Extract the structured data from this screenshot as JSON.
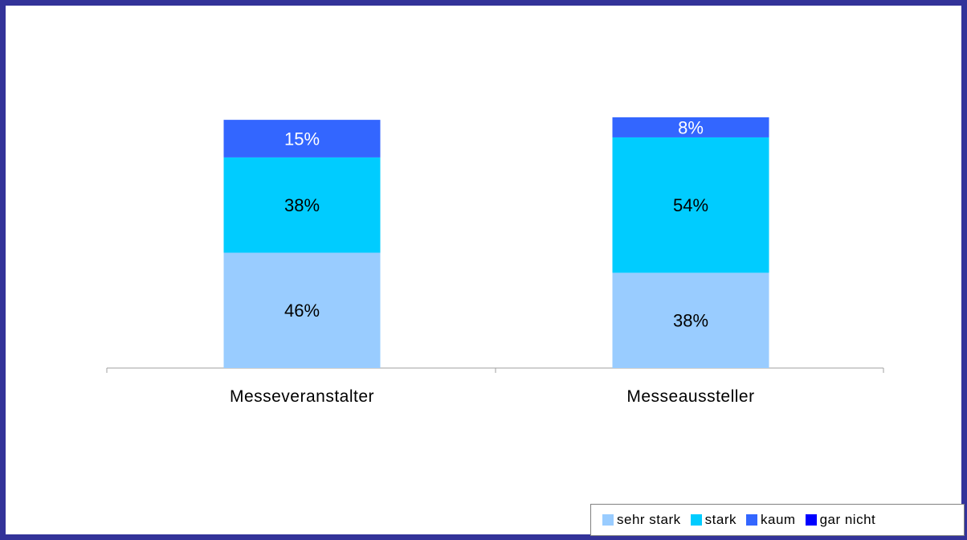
{
  "chart_data": {
    "type": "bar",
    "stacked": true,
    "categories": [
      "Messeveranstalter",
      "Messeaussteller"
    ],
    "series": [
      {
        "name": "sehr stark",
        "values": [
          46,
          38
        ],
        "labels": [
          "46%",
          "38%"
        ],
        "color": "#99ccff",
        "label_color": "#000000"
      },
      {
        "name": "stark",
        "values": [
          38,
          54
        ],
        "labels": [
          "38%",
          "54%"
        ],
        "color": "#00ccff",
        "label_color": "#000000"
      },
      {
        "name": "kaum",
        "values": [
          15,
          8
        ],
        "labels": [
          "15%",
          "8%"
        ],
        "color": "#3366ff",
        "label_color": "#ffffff"
      },
      {
        "name": "gar nicht",
        "values": [
          0,
          0
        ],
        "labels": [
          "",
          ""
        ],
        "color": "#0000ff",
        "label_color": "#ffffff"
      }
    ],
    "ylim": [
      0,
      100
    ],
    "legend_position": "bottom-right",
    "grid": false
  }
}
